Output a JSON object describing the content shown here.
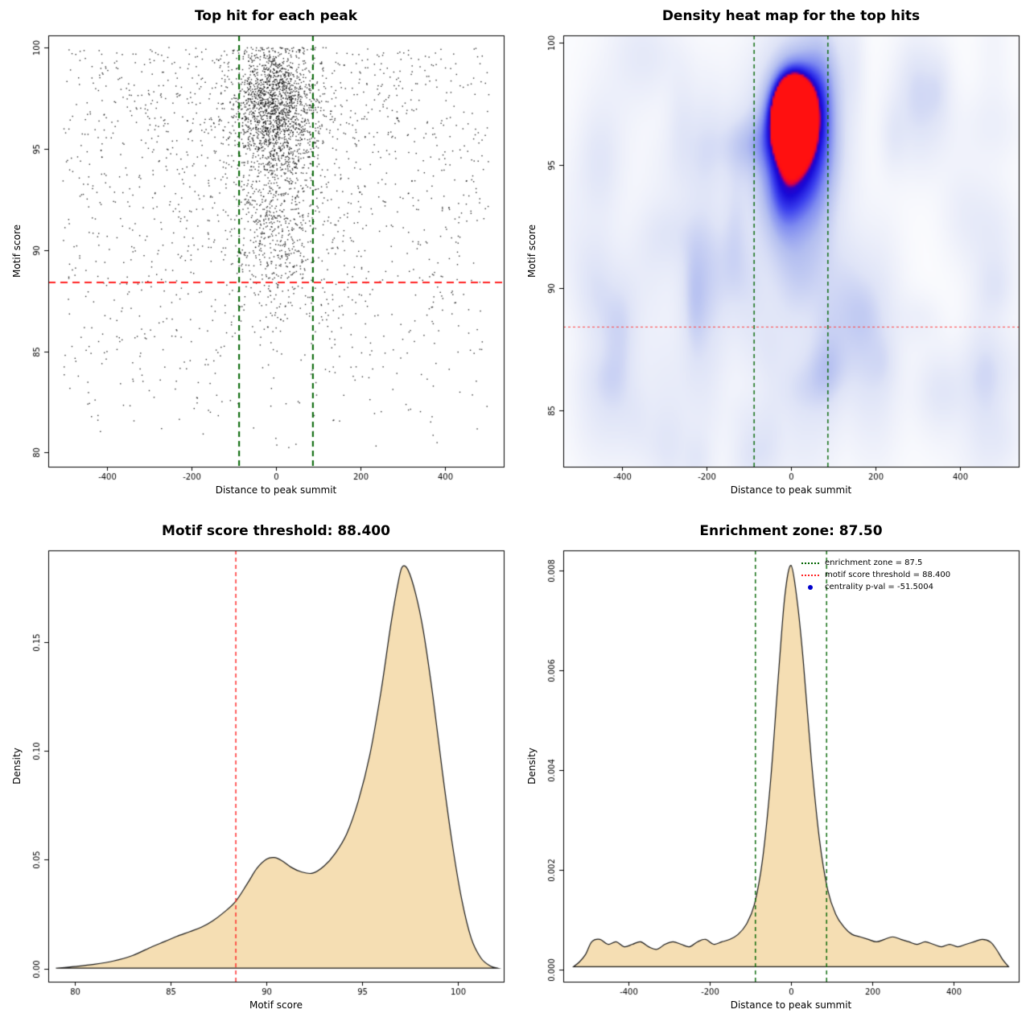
{
  "page": {
    "background": "#ffffff"
  },
  "chart_data": [
    {
      "id": "top-hit-scatter",
      "type": "scatter",
      "title": "Top hit for each peak",
      "xlabel": "Distance to peak summit",
      "ylabel": "Motif score",
      "xlim": [
        -540,
        540
      ],
      "ylim": [
        79.3,
        100.6
      ],
      "xticks": [
        -400,
        -200,
        0,
        200,
        400
      ],
      "xtick_labels": [
        "-400",
        "-200",
        "0",
        "200",
        "400"
      ],
      "yticks": [
        80,
        85,
        90,
        95,
        100
      ],
      "ytick_labels": [
        "80",
        "85",
        "90",
        "95",
        "100"
      ],
      "point_color": "#000000",
      "enrichment_zone": 87.5,
      "score_threshold": 88.4,
      "enrichment_line_color": "#006400",
      "threshold_line_color": "#ff2222",
      "generator": {
        "seed": 1337,
        "background_n": 1400,
        "bg_bias": 0.55,
        "cluster_n": 2400,
        "cluster_sx_core": 46,
        "cluster_sx_wide": 130,
        "wide_frac": 0.18,
        "y_main": 96.9,
        "y_main_sd": 1.7,
        "y_sub": 90.8,
        "y_sub_sd": 2.1,
        "top_frac": 0.78
      }
    },
    {
      "id": "density-heatmap",
      "type": "heatmap",
      "title": "Density heat map for the top hits",
      "xlabel": "Distance to peak summit",
      "ylabel": "Motif score",
      "xlim": [
        -540,
        540
      ],
      "ylim": [
        82.7,
        100.3
      ],
      "xticks": [
        -400,
        -200,
        0,
        200,
        400
      ],
      "xtick_labels": [
        "-400",
        "-200",
        "0",
        "200",
        "400"
      ],
      "yticks": [
        85,
        90,
        95,
        100
      ],
      "ytick_labels": [
        "85",
        "90",
        "95",
        "100"
      ],
      "enrichment_zone": 87.5,
      "score_threshold": 88.4,
      "enrichment_line_color": "#006400",
      "threshold_line_color": "#ff4444",
      "colormap": [
        [
          0,
          "#ffffff"
        ],
        [
          0.12,
          "#f1f3fb"
        ],
        [
          0.3,
          "#dfe4f7"
        ],
        [
          0.5,
          "#b4bff0"
        ],
        [
          0.65,
          "#7f8cf0"
        ],
        [
          0.78,
          "#3a3fee"
        ],
        [
          0.88,
          "#180bd8"
        ],
        [
          0.93,
          "#2a00c8"
        ],
        [
          0.965,
          "#e8003c"
        ],
        [
          1,
          "#ff1010"
        ]
      ],
      "blobs": [
        {
          "cx": 0,
          "cy": 97.1,
          "amp": 1.3,
          "sx": 28,
          "sy": 0.95
        },
        {
          "cx": 0,
          "cy": 96.6,
          "amp": 0.5,
          "sx": 55,
          "sy": 2.1
        },
        {
          "cx": 0,
          "cy": 95.2,
          "amp": 0.3,
          "sx": 70,
          "sy": 3.4
        },
        {
          "cx": 0,
          "cy": 91.0,
          "amp": 0.18,
          "sx": 48,
          "sy": 5.5
        }
      ],
      "noise": {
        "seed": 77,
        "n": 90,
        "amp_min": 0.05,
        "amp_max": 0.15,
        "sx_min": 18,
        "sx_max": 55,
        "sy_min": 0.7,
        "sy_max": 2.4,
        "base": 0.035
      }
    },
    {
      "id": "motif-score-density",
      "type": "density",
      "title": "Motif score threshold: 88.400",
      "xlabel": "Motif score",
      "ylabel": "Density",
      "xlim": [
        78.6,
        102.4
      ],
      "ylim": [
        -0.006,
        0.192
      ],
      "xticks": [
        80,
        85,
        90,
        95,
        100
      ],
      "xtick_labels": [
        "80",
        "85",
        "90",
        "95",
        "100"
      ],
      "yticks": [
        0,
        0.05,
        0.1,
        0.15
      ],
      "ytick_labels": [
        "0.00",
        "0.05",
        "0.10",
        "0.15"
      ],
      "fill_color": "#f5deb3",
      "stroke_color": "#1a1a1a",
      "vlines": [
        {
          "x": 88.4,
          "color": "#ff2222"
        }
      ],
      "points": [
        [
          79.0,
          0.0002
        ],
        [
          80,
          0.001
        ],
        [
          81,
          0.002
        ],
        [
          82,
          0.0035
        ],
        [
          83,
          0.006
        ],
        [
          84,
          0.01
        ],
        [
          84.7,
          0.0125
        ],
        [
          85.3,
          0.0148
        ],
        [
          86,
          0.017
        ],
        [
          86.6,
          0.019
        ],
        [
          87.2,
          0.022
        ],
        [
          87.8,
          0.026
        ],
        [
          88.4,
          0.031
        ],
        [
          89,
          0.039
        ],
        [
          89.5,
          0.046
        ],
        [
          90,
          0.0502
        ],
        [
          90.4,
          0.051
        ],
        [
          90.8,
          0.0496
        ],
        [
          91.3,
          0.0465
        ],
        [
          91.8,
          0.0445
        ],
        [
          92.4,
          0.0438
        ],
        [
          93,
          0.047
        ],
        [
          93.6,
          0.053
        ],
        [
          94.2,
          0.062
        ],
        [
          94.8,
          0.077
        ],
        [
          95.4,
          0.098
        ],
        [
          96,
          0.128
        ],
        [
          96.5,
          0.158
        ],
        [
          96.9,
          0.178
        ],
        [
          97.1,
          0.1845
        ],
        [
          97.4,
          0.183
        ],
        [
          97.8,
          0.172
        ],
        [
          98.2,
          0.155
        ],
        [
          98.7,
          0.125
        ],
        [
          99.2,
          0.09
        ],
        [
          99.7,
          0.058
        ],
        [
          100.2,
          0.032
        ],
        [
          100.7,
          0.014
        ],
        [
          101.2,
          0.005
        ],
        [
          101.7,
          0.0012
        ],
        [
          102.1,
          0.0002
        ]
      ]
    },
    {
      "id": "summit-distance-density",
      "type": "density",
      "title": "Enrichment zone: 87.50",
      "xlabel": "Distance to peak summit",
      "ylabel": "Density",
      "xlim": [
        -560,
        560
      ],
      "ylim": [
        -0.00025,
        0.0084
      ],
      "xticks": [
        -400,
        -200,
        0,
        200,
        400
      ],
      "xtick_labels": [
        "-400",
        "-200",
        "0",
        "200",
        "400"
      ],
      "yticks": [
        0,
        0.002,
        0.004,
        0.006,
        0.008
      ],
      "ytick_labels": [
        "0.000",
        "0.002",
        "0.004",
        "0.006",
        "0.008"
      ],
      "fill_color": "#f5deb3",
      "stroke_color": "#1a1a1a",
      "vlines": [
        {
          "x": -87.5,
          "color": "#006400"
        },
        {
          "x": 87.5,
          "color": "#006400"
        }
      ],
      "points": [
        [
          -535,
          5e-05
        ],
        [
          -520,
          0.00015
        ],
        [
          -505,
          0.0003
        ],
        [
          -490,
          0.00055
        ],
        [
          -470,
          0.0006
        ],
        [
          -450,
          0.0005
        ],
        [
          -430,
          0.00055
        ],
        [
          -410,
          0.00045
        ],
        [
          -390,
          0.0005
        ],
        [
          -370,
          0.00055
        ],
        [
          -350,
          0.00045
        ],
        [
          -330,
          0.0004
        ],
        [
          -310,
          0.0005
        ],
        [
          -290,
          0.00055
        ],
        [
          -270,
          0.0005
        ],
        [
          -250,
          0.00045
        ],
        [
          -230,
          0.00055
        ],
        [
          -210,
          0.0006
        ],
        [
          -190,
          0.0005
        ],
        [
          -170,
          0.00055
        ],
        [
          -150,
          0.0006
        ],
        [
          -130,
          0.0007
        ],
        [
          -110,
          0.0009
        ],
        [
          -90,
          0.0013
        ],
        [
          -70,
          0.0022
        ],
        [
          -50,
          0.0038
        ],
        [
          -30,
          0.006
        ],
        [
          -15,
          0.0075
        ],
        [
          0,
          0.0081
        ],
        [
          15,
          0.0074
        ],
        [
          30,
          0.0062
        ],
        [
          50,
          0.0042
        ],
        [
          70,
          0.0026
        ],
        [
          90,
          0.0016
        ],
        [
          110,
          0.0011
        ],
        [
          130,
          0.00085
        ],
        [
          150,
          0.0007
        ],
        [
          170,
          0.00065
        ],
        [
          190,
          0.0006
        ],
        [
          210,
          0.00055
        ],
        [
          230,
          0.0006
        ],
        [
          250,
          0.00065
        ],
        [
          270,
          0.0006
        ],
        [
          290,
          0.00055
        ],
        [
          310,
          0.0005
        ],
        [
          330,
          0.00055
        ],
        [
          350,
          0.0005
        ],
        [
          370,
          0.00045
        ],
        [
          390,
          0.0005
        ],
        [
          410,
          0.00045
        ],
        [
          430,
          0.0005
        ],
        [
          450,
          0.00055
        ],
        [
          470,
          0.0006
        ],
        [
          490,
          0.00055
        ],
        [
          505,
          0.0004
        ],
        [
          520,
          0.0002
        ],
        [
          535,
          5e-05
        ]
      ],
      "legend": {
        "items": [
          {
            "label": "enrichment zone = 87.5",
            "marker": "dotted-line",
            "color": "#006400"
          },
          {
            "label": "motif score threshold = 88.400",
            "marker": "dotted-line",
            "color": "#ff2222"
          },
          {
            "label": "centrality p-val = -51.5004",
            "marker": "dot",
            "color": "#0000cc"
          }
        ]
      }
    }
  ]
}
